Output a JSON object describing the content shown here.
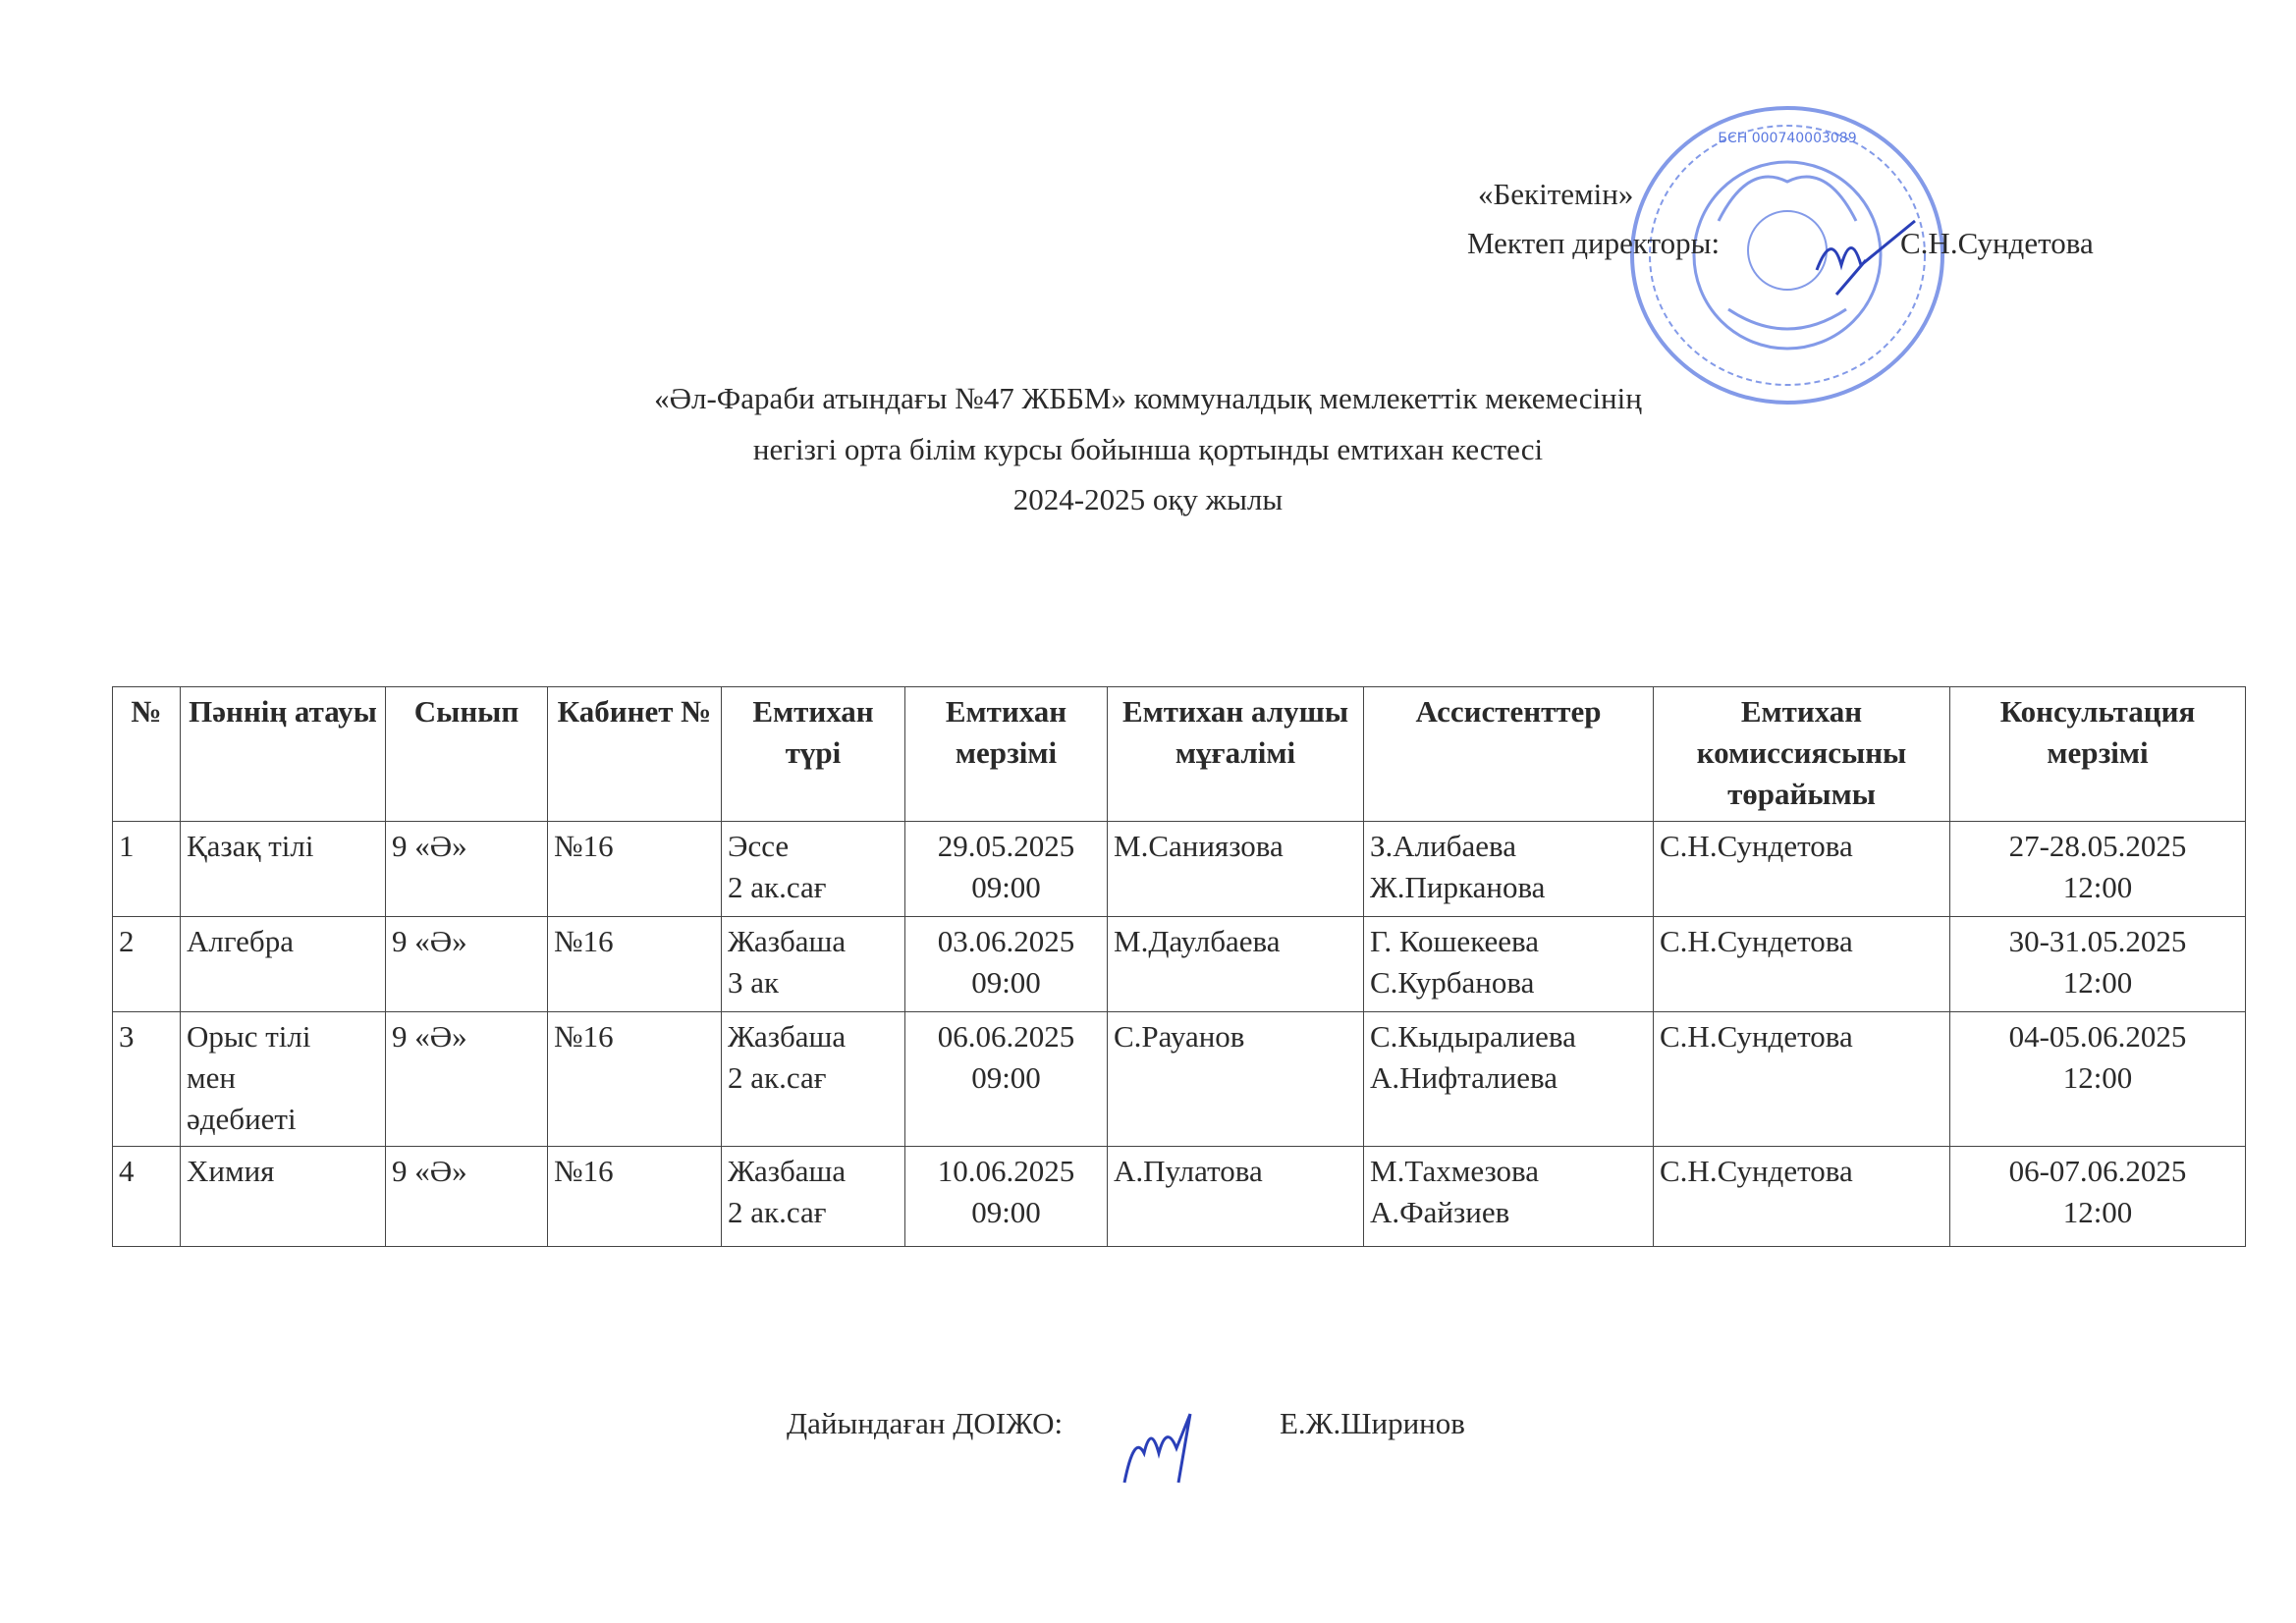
{
  "approval": {
    "approved_label": "«Бекітемін»",
    "director_label": "Мектеп директоры:",
    "director_name": "С.Н.Сундетова"
  },
  "stamp": {
    "text": "БСН 000740003089",
    "color": "#3b5bd6"
  },
  "title": {
    "line1": "«Әл-Фараби атындағы №47 ЖББМ» коммуналдық мемлекеттік мекемесінің",
    "line2": "негізгі орта білім курсы бойынша қортынды емтихан кестесі",
    "line3": "2024-2025 оқу жылы"
  },
  "table": {
    "headers": [
      "№",
      "Пәннің атауы",
      "Сынып",
      "Кабинет №",
      "Емтихан түрі",
      "Емтихан мерзімі",
      "Емтихан алушы мұғалімі",
      "Ассистенттер",
      "Емтихан комиссиясыны төрайымы",
      "Консультация мерзімі"
    ],
    "rows": [
      {
        "num": "1",
        "subject": "Қазақ тілі",
        "class": "9 «Ә»",
        "room": "№16",
        "type": "Эссе\n2 ак.сағ",
        "date": "29.05.2025\n09:00",
        "teacher": "М.Саниязова",
        "assistants": "З.Алибаева\nЖ.Пирканова",
        "chair": "С.Н.Сундетова",
        "consult": "27-28.05.2025\n12:00"
      },
      {
        "num": "2",
        "subject": "Алгебра",
        "class": "9 «Ә»",
        "room": "№16",
        "type": "Жазбаша\n3 ак",
        "date": "03.06.2025\n09:00",
        "teacher": "М.Даулбаева",
        "assistants": "Г. Кошекеева\nС.Курбанова",
        "chair": "С.Н.Сундетова",
        "consult": "30-31.05.2025\n12:00"
      },
      {
        "num": "3",
        "subject": "Орыс тілі\nмен\nәдебиеті",
        "class": "9 «Ә»",
        "room": "№16",
        "type": "Жазбаша\n2 ак.сағ",
        "date": "06.06.2025\n09:00",
        "teacher": "С.Рауанов",
        "assistants": "С.Кыдыралиева\nА.Нифталиева",
        "chair": "С.Н.Сундетова",
        "consult": "04-05.06.2025\n12:00"
      },
      {
        "num": "4",
        "subject": "Химия",
        "class": "9 «Ә»",
        "room": "№16",
        "type": "Жазбаша\n2 ак.сағ",
        "date": "10.06.2025\n09:00",
        "teacher": "А.Пулатова",
        "assistants": "М.Тахмезова\nА.Файзиев",
        "chair": "С.Н.Сундетова",
        "consult": "06-07.06.2025\n12:00"
      }
    ]
  },
  "footer": {
    "prepared_label": "Дайындаған ДОІЖО:",
    "prepared_name": "Е.Ж.Ширинов"
  }
}
